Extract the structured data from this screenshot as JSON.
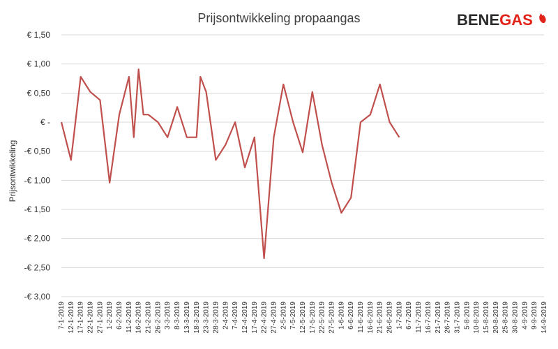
{
  "logo": {
    "part1": "BENE",
    "part2": "GAS",
    "color_dark": "#2b2b2b",
    "color_red": "#e2231a"
  },
  "chart_data": {
    "type": "line",
    "title": "Prijsontwikkeling propaangas",
    "ylabel": "Prijsontwikkeling",
    "xlabel": "",
    "ylim": [
      -3.0,
      1.5
    ],
    "yticks": [
      {
        "value": 1.5,
        "label": "€ 1,50"
      },
      {
        "value": 1.0,
        "label": "€ 1,00"
      },
      {
        "value": 0.5,
        "label": "€ 0,50"
      },
      {
        "value": 0.0,
        "label": "€ -"
      },
      {
        "value": -0.5,
        "label": "-€ 0,50"
      },
      {
        "value": -1.0,
        "label": "-€ 1,00"
      },
      {
        "value": -1.5,
        "label": "-€ 1,50"
      },
      {
        "value": -2.0,
        "label": "-€ 2,00"
      },
      {
        "value": -2.5,
        "label": "-€ 2,50"
      },
      {
        "value": -3.0,
        "label": "-€ 3,00"
      }
    ],
    "grid": true,
    "line_color": "#c0504d",
    "categories": [
      "7-1-2019",
      "12-1-2019",
      "17-1-2019",
      "22-1-2019",
      "27-1-2019",
      "1-2-2019",
      "6-2-2019",
      "11-2-2019",
      "16-2-2019",
      "21-2-2019",
      "26-2-2019",
      "3-3-2019",
      "8-3-2019",
      "13-3-2019",
      "18-3-2019",
      "23-3-2019",
      "28-3-2019",
      "2-4-2019",
      "7-4-2019",
      "12-4-2019",
      "17-4-2019",
      "22-4-2019",
      "27-4-2019",
      "2-5-2019",
      "7-5-2019",
      "12-5-2019",
      "17-5-2019",
      "22-5-2019",
      "27-5-2019",
      "1-6-2019",
      "6-6-2019",
      "11-6-2019",
      "16-6-2019",
      "21-6-2019",
      "26-6-2019",
      "1-7-2019",
      "6-7-2019",
      "11-7-2019",
      "16-7-2019",
      "21-7-2019",
      "26-7-2019",
      "31-7-2019",
      "5-8-2019",
      "10-8-2019",
      "15-8-2019",
      "20-8-2019",
      "25-8-2019",
      "30-8-2019",
      "4-9-2019",
      "9-9-2019",
      "14-9-2019"
    ],
    "points": [
      {
        "x": 0,
        "y": 0.0
      },
      {
        "x": 1,
        "y": -0.65
      },
      {
        "x": 2,
        "y": 0.78
      },
      {
        "x": 3,
        "y": 0.52
      },
      {
        "x": 4,
        "y": 0.38
      },
      {
        "x": 5,
        "y": -1.04
      },
      {
        "x": 6,
        "y": 0.13
      },
      {
        "x": 7,
        "y": 0.78
      },
      {
        "x": 7.5,
        "y": -0.26
      },
      {
        "x": 8,
        "y": 0.91
      },
      {
        "x": 8.5,
        "y": 0.13
      },
      {
        "x": 9,
        "y": 0.13
      },
      {
        "x": 10,
        "y": 0.0
      },
      {
        "x": 11,
        "y": -0.26
      },
      {
        "x": 12,
        "y": 0.26
      },
      {
        "x": 13,
        "y": -0.26
      },
      {
        "x": 14,
        "y": -0.26
      },
      {
        "x": 14.4,
        "y": 0.78
      },
      {
        "x": 15,
        "y": 0.52
      },
      {
        "x": 16,
        "y": -0.65
      },
      {
        "x": 17,
        "y": -0.39
      },
      {
        "x": 18,
        "y": 0.0
      },
      {
        "x": 19,
        "y": -0.78
      },
      {
        "x": 20,
        "y": -0.26
      },
      {
        "x": 21,
        "y": -2.34
      },
      {
        "x": 22,
        "y": -0.26
      },
      {
        "x": 23,
        "y": 0.65
      },
      {
        "x": 24,
        "y": 0.0
      },
      {
        "x": 25,
        "y": -0.52
      },
      {
        "x": 26,
        "y": 0.52
      },
      {
        "x": 27,
        "y": -0.39
      },
      {
        "x": 28,
        "y": -1.04
      },
      {
        "x": 29,
        "y": -1.56
      },
      {
        "x": 30,
        "y": -1.3
      },
      {
        "x": 31,
        "y": 0.0
      },
      {
        "x": 32,
        "y": 0.13
      },
      {
        "x": 33,
        "y": 0.65
      },
      {
        "x": 34,
        "y": 0.0
      },
      {
        "x": 35,
        "y": -0.26
      }
    ]
  }
}
